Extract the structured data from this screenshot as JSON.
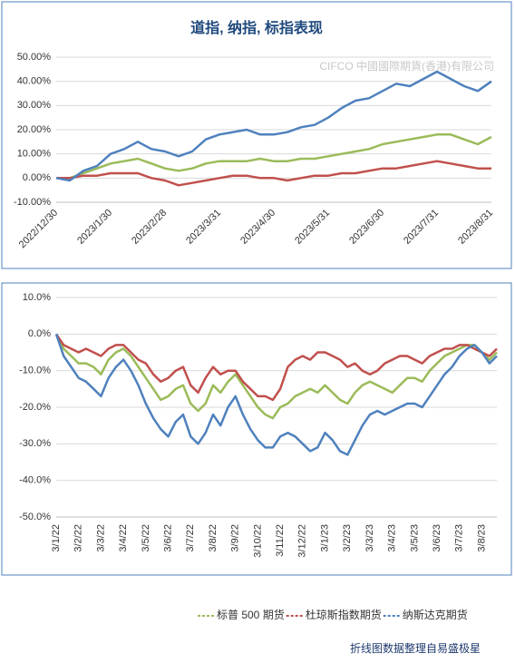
{
  "chart_data": [
    {
      "type": "line",
      "title": "道指, 纳指, 标指表现",
      "watermark": "CIFCO 中國國際期貨(香港)有限公司",
      "categories": [
        "2022/12/30",
        null,
        null,
        null,
        "2023/1/30",
        null,
        null,
        null,
        "2023/2/28",
        null,
        null,
        null,
        "2023/3/31",
        null,
        null,
        null,
        "2023/4/30",
        null,
        null,
        null,
        "2023/5/31",
        null,
        null,
        null,
        "2023/6/30",
        null,
        null,
        null,
        "2023/7/31",
        null,
        null,
        null,
        "2023/8/31"
      ],
      "ylim": [
        -10,
        50
      ],
      "yticks": [
        {
          "value": -10,
          "label": "-10.00%"
        },
        {
          "value": 0,
          "label": "0.00%"
        },
        {
          "value": 10,
          "label": "10.00%"
        },
        {
          "value": 20,
          "label": "20.00%"
        },
        {
          "value": 30,
          "label": "30.00%"
        },
        {
          "value": 40,
          "label": "40.00%"
        },
        {
          "value": 50,
          "label": "50.00%"
        }
      ],
      "grid": true,
      "series": [
        {
          "color": "#9bbb59",
          "values": [
            0,
            0,
            2,
            4,
            6,
            7,
            8,
            6,
            4,
            3,
            4,
            6,
            7,
            7,
            7,
            8,
            7,
            7,
            8,
            8,
            9,
            10,
            11,
            12,
            14,
            15,
            16,
            17,
            18,
            18,
            16,
            14,
            17
          ]
        },
        {
          "color": "#c0504d",
          "values": [
            0,
            0,
            1,
            1,
            2,
            2,
            2,
            0,
            -1,
            -3,
            -2,
            -1,
            0,
            1,
            1,
            0,
            0,
            -1,
            0,
            1,
            1,
            2,
            2,
            3,
            4,
            4,
            5,
            6,
            7,
            6,
            5,
            4,
            4
          ]
        },
        {
          "color": "#4f81bd",
          "values": [
            0,
            -1,
            3,
            5,
            10,
            12,
            15,
            12,
            11,
            9,
            11,
            16,
            18,
            19,
            20,
            18,
            18,
            19,
            21,
            22,
            25,
            29,
            32,
            33,
            36,
            39,
            38,
            41,
            44,
            41,
            38,
            36,
            40
          ]
        }
      ]
    },
    {
      "type": "line",
      "source": "折线图数据整理自易盛极星",
      "categories": [
        "3/1/22",
        null,
        null,
        "3/2/22",
        null,
        null,
        "3/3/22",
        null,
        null,
        "3/4/22",
        null,
        null,
        "3/5/22",
        null,
        null,
        "3/6/22",
        null,
        null,
        "3/7/22",
        null,
        null,
        "3/8/22",
        null,
        null,
        "3/9/22",
        null,
        null,
        "3/10/22",
        null,
        null,
        "3/11/22",
        null,
        null,
        "3/12/22",
        null,
        null,
        "3/1/23",
        null,
        null,
        "3/2/23",
        null,
        null,
        "3/3/23",
        null,
        null,
        "3/4/23",
        null,
        null,
        "3/5/23",
        null,
        null,
        "3/6/23",
        null,
        null,
        "3/7/23",
        null,
        null,
        "3/8/23",
        null,
        null
      ],
      "ylim": [
        -50,
        10
      ],
      "yticks": [
        {
          "value": -50,
          "label": "-50.0%"
        },
        {
          "value": -40,
          "label": "-40.0%"
        },
        {
          "value": -30,
          "label": "-30.0%"
        },
        {
          "value": -20,
          "label": "-20.0%"
        },
        {
          "value": -10,
          "label": "-10.0%"
        },
        {
          "value": 0,
          "label": "0.0%"
        },
        {
          "value": 10,
          "label": "10.0%"
        }
      ],
      "grid": true,
      "series": [
        {
          "name": "标普 500 期货",
          "color": "#9bbb59",
          "values": [
            0,
            -4,
            -6,
            -8,
            -8,
            -9,
            -11,
            -7,
            -5,
            -4,
            -6,
            -9,
            -12,
            -15,
            -18,
            -17,
            -15,
            -14,
            -19,
            -21,
            -19,
            -14,
            -16,
            -13,
            -11,
            -14,
            -17,
            -20,
            -22,
            -23,
            -20,
            -19,
            -17,
            -16,
            -15,
            -16,
            -14,
            -16,
            -18,
            -19,
            -16,
            -14,
            -13,
            -14,
            -15,
            -16,
            -14,
            -12,
            -12,
            -13,
            -10,
            -8,
            -6,
            -5,
            -4,
            -3,
            -3,
            -5,
            -7,
            -5
          ]
        },
        {
          "name": "杜琼斯指数期货",
          "color": "#c0504d",
          "values": [
            0,
            -3,
            -4,
            -5,
            -4,
            -5,
            -6,
            -4,
            -3,
            -3,
            -5,
            -7,
            -8,
            -11,
            -13,
            -12,
            -10,
            -9,
            -14,
            -16,
            -12,
            -9,
            -11,
            -10,
            -10,
            -13,
            -15,
            -17,
            -17,
            -18,
            -15,
            -9,
            -7,
            -6,
            -7,
            -5,
            -5,
            -6,
            -7,
            -9,
            -8,
            -10,
            -11,
            -10,
            -8,
            -7,
            -6,
            -6,
            -7,
            -8,
            -6,
            -5,
            -4,
            -4,
            -3,
            -3,
            -4,
            -5,
            -6,
            -4
          ]
        },
        {
          "name": "纳斯达克期货",
          "color": "#4f81bd",
          "values": [
            0,
            -6,
            -9,
            -12,
            -13,
            -15,
            -17,
            -12,
            -9,
            -7,
            -10,
            -14,
            -19,
            -23,
            -26,
            -28,
            -24,
            -22,
            -28,
            -30,
            -27,
            -22,
            -25,
            -20,
            -17,
            -22,
            -26,
            -29,
            -31,
            -31,
            -28,
            -27,
            -28,
            -30,
            -32,
            -31,
            -27,
            -29,
            -32,
            -33,
            -29,
            -25,
            -22,
            -21,
            -22,
            -21,
            -20,
            -19,
            -19,
            -20,
            -17,
            -14,
            -11,
            -9,
            -6,
            -4,
            -3,
            -5,
            -8,
            -6
          ]
        }
      ]
    }
  ]
}
